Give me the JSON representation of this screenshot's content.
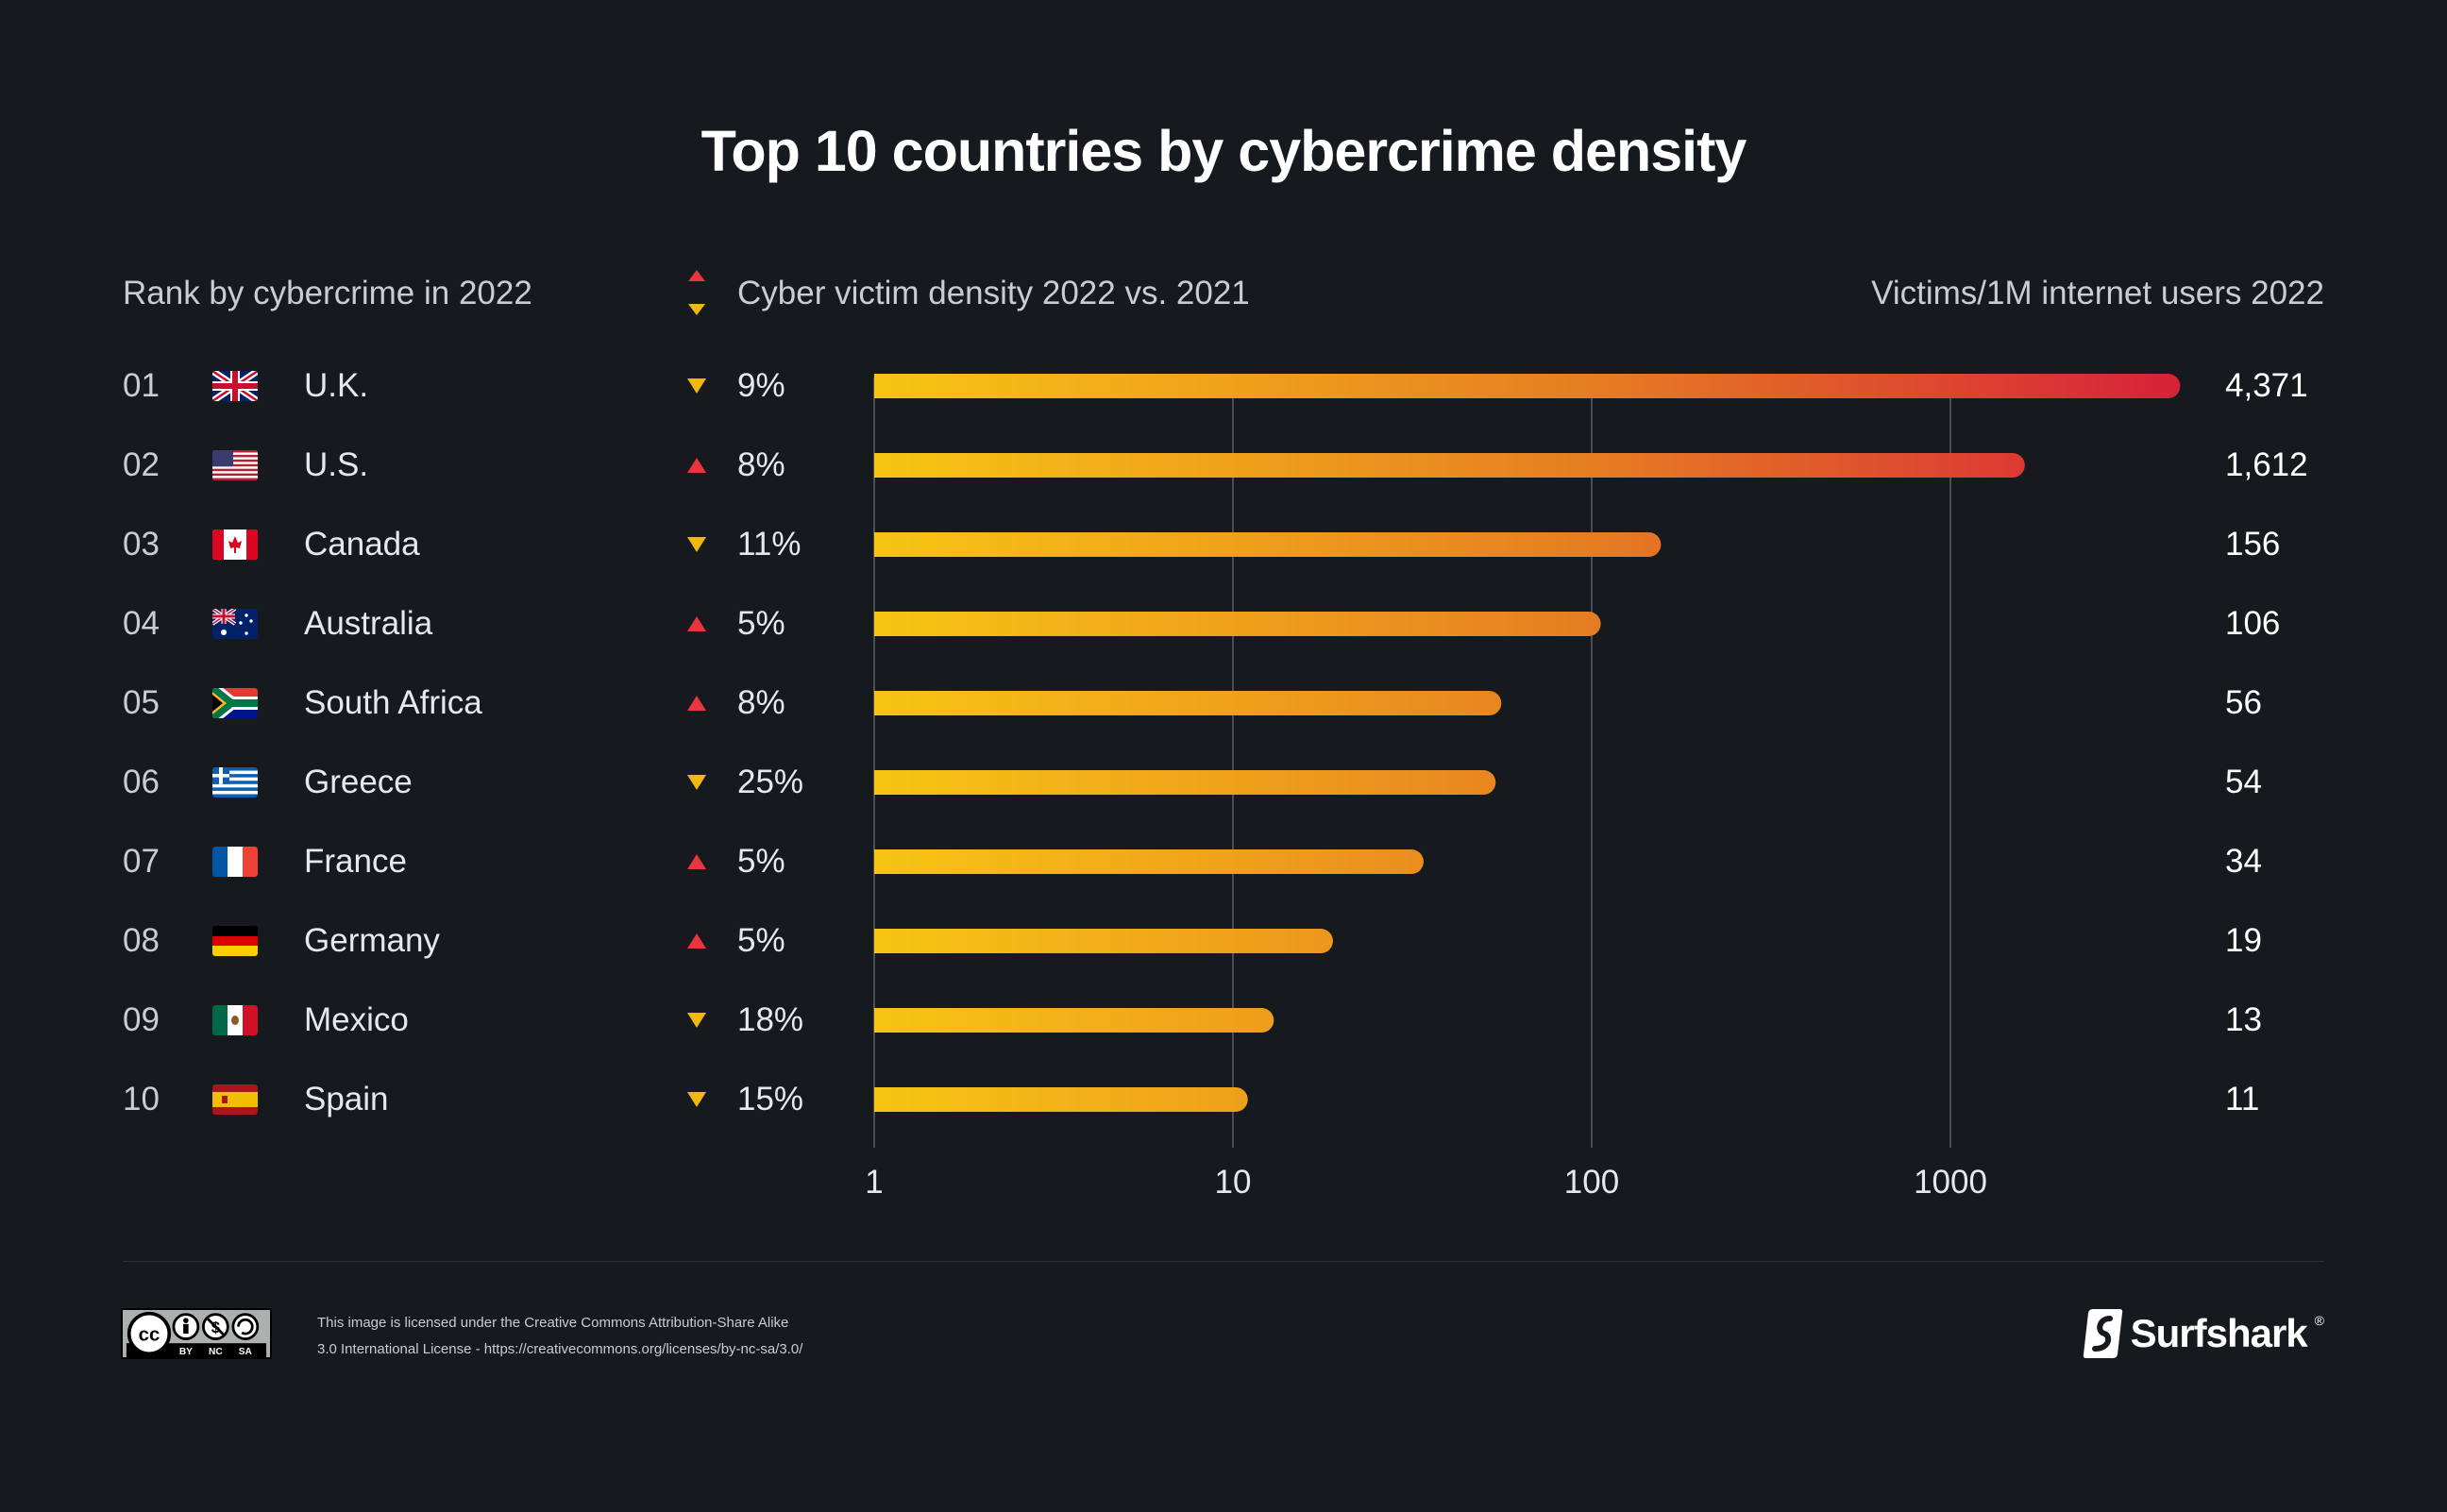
{
  "title": "Top 10 countries by cybercrime density",
  "headers": {
    "rank": "Rank by cybercrime in 2022",
    "change": "Cyber victim density 2022 vs. 2021",
    "victims": "Victims/1M internet users 2022"
  },
  "colors": {
    "background": "#16191e",
    "bar_start": "#f7c514",
    "bar_end": "#d61f3a",
    "arrow_up": "#e8363f",
    "arrow_down": "#f3b810"
  },
  "chart_data": {
    "type": "bar",
    "orientation": "horizontal",
    "title": "Top 10 countries by cybercrime density",
    "xscale": "log",
    "xlim": [
      1,
      5000
    ],
    "xticks": [
      "1",
      "10",
      "100",
      "1000"
    ],
    "xtick_values": [
      1,
      10,
      100,
      1000
    ],
    "grid": true,
    "categories": [
      "U.K.",
      "U.S.",
      "Canada",
      "Australia",
      "South Africa",
      "Greece",
      "France",
      "Germany",
      "Mexico",
      "Spain"
    ],
    "values": [
      4371,
      1612,
      156,
      106,
      56,
      54,
      34,
      19,
      13,
      11
    ],
    "value_labels": [
      "4,371",
      "1,612",
      "156",
      "106",
      "56",
      "54",
      "34",
      "19",
      "13",
      "11"
    ]
  },
  "rows": [
    {
      "rank": "01",
      "country": "U.K.",
      "flag": "uk-flag-icon",
      "direction": "down",
      "change": "9%"
    },
    {
      "rank": "02",
      "country": "U.S.",
      "flag": "us-flag-icon",
      "direction": "up",
      "change": "8%"
    },
    {
      "rank": "03",
      "country": "Canada",
      "flag": "canada-flag-icon",
      "direction": "down",
      "change": "11%"
    },
    {
      "rank": "04",
      "country": "Australia",
      "flag": "australia-flag-icon",
      "direction": "up",
      "change": "5%"
    },
    {
      "rank": "05",
      "country": "South Africa",
      "flag": "south-africa-flag-icon",
      "direction": "up",
      "change": "8%"
    },
    {
      "rank": "06",
      "country": "Greece",
      "flag": "greece-flag-icon",
      "direction": "down",
      "change": "25%"
    },
    {
      "rank": "07",
      "country": "France",
      "flag": "france-flag-icon",
      "direction": "up",
      "change": "5%"
    },
    {
      "rank": "08",
      "country": "Germany",
      "flag": "germany-flag-icon",
      "direction": "up",
      "change": "5%"
    },
    {
      "rank": "09",
      "country": "Mexico",
      "flag": "mexico-flag-icon",
      "direction": "down",
      "change": "18%"
    },
    {
      "rank": "10",
      "country": "Spain",
      "flag": "spain-flag-icon",
      "direction": "down",
      "change": "15%"
    }
  ],
  "footer": {
    "license_line1": "This image is licensed under the Creative Commons Attribution-Share Alike",
    "license_line2": "3.0 International License - https://creativecommons.org/licenses/by-nc-sa/3.0/",
    "cc_icon": "cc-by-nc-sa-icon",
    "cc_labels": [
      "BY",
      "NC",
      "SA"
    ],
    "brand": "Surfshark",
    "brand_mark": "®",
    "brand_icon": "surfshark-logo-icon"
  }
}
